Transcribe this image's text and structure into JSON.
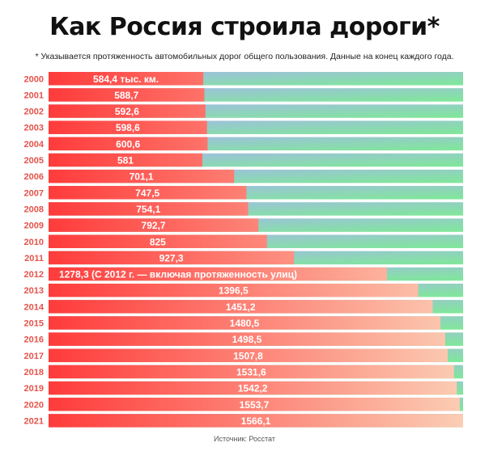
{
  "title": "Как Россия строила дороги*",
  "subtitle": "* Указывается протяженность автомобильных дорог общего пользования. Данные на конец каждого года.",
  "source": "Источник: Росстат",
  "chart_data": {
    "type": "bar",
    "orientation": "horizontal",
    "unit": "тыс. км.",
    "xlim": [
      0,
      1566.1
    ],
    "categories": [
      "2000",
      "2001",
      "2002",
      "2003",
      "2004",
      "2005",
      "2006",
      "2007",
      "2008",
      "2009",
      "2010",
      "2011",
      "2012",
      "2013",
      "2014",
      "2015",
      "2016",
      "2017",
      "2018",
      "2019",
      "2020",
      "2021"
    ],
    "values": [
      584.4,
      588.7,
      592.6,
      598.6,
      600.6,
      581,
      701.1,
      747.5,
      754.1,
      792.7,
      825,
      927.3,
      1278.3,
      1396.5,
      1451.2,
      1480.5,
      1498.5,
      1507.8,
      1531.6,
      1542.2,
      1553.7,
      1566.1
    ],
    "labels": [
      "584,4 тыс. км.",
      "588,7",
      "592,6",
      "598,6",
      "600,6",
      "581",
      "701,1",
      "747,5",
      "754,1",
      "792,7",
      "825",
      "927,3",
      "1278,3",
      "1396,5",
      "1451,2",
      "1480,5",
      "1498,5",
      "1507,8",
      "1531,6",
      "1542,2",
      "1553,7",
      "1566,1"
    ],
    "annotations": [
      {
        "index": 12,
        "text": "(С 2012 г. — включая протяженность улиц)"
      }
    ],
    "colors": {
      "bar_start": "#ff3b3b",
      "bar_end": "#fbcdb4",
      "bg_start": "#a3b9e8",
      "bg_end": "#7fe898",
      "year_label": "#e5524a"
    }
  }
}
